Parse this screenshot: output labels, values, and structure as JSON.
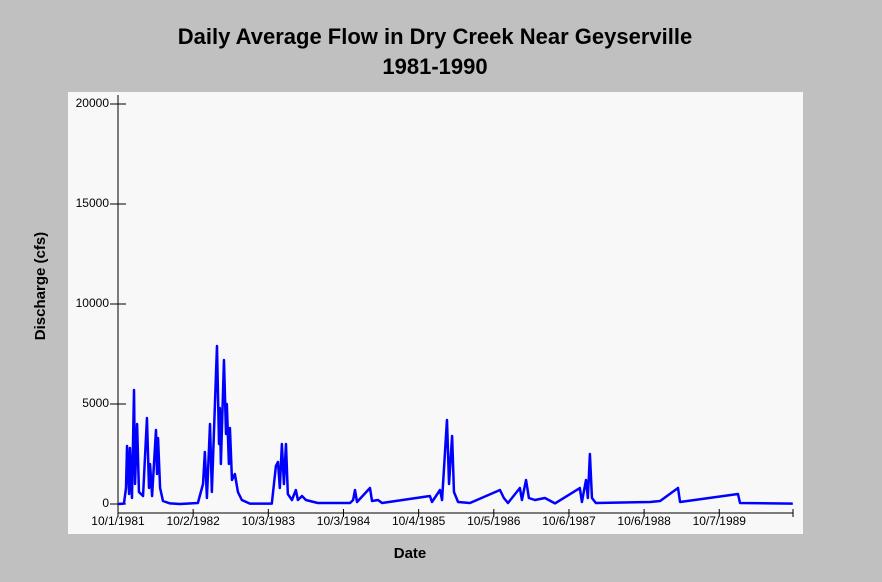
{
  "chart_data": {
    "type": "line",
    "title": "Daily Average Flow in Dry Creek Near Geyserville",
    "subtitle": "1981-1990",
    "x_label": "Date",
    "y_label": "Discharge (cfs)",
    "color": "#0000ff",
    "x": [
      "1981-10-01",
      "1981-10-30",
      "1981-11-09",
      "1981-11-14",
      "1981-11-24",
      "1981-11-28",
      "1981-12-08",
      "1981-12-18",
      "1981-12-23",
      "1982-01-02",
      "1982-01-11",
      "1982-01-31",
      "1982-02-19",
      "1982-03-01",
      "1982-03-06",
      "1982-03-16",
      "1982-04-04",
      "1982-04-09",
      "1982-04-14",
      "1982-04-24",
      "1982-05-08",
      "1982-06-11",
      "1982-07-30",
      "1982-10-25",
      "1982-11-19",
      "1982-11-28",
      "1982-12-08",
      "1982-12-23",
      "1983-01-01",
      "1983-01-26",
      "1983-02-05",
      "1983-02-09",
      "1983-02-14",
      "1983-03-01",
      "1983-03-11",
      "1983-03-15",
      "1983-03-25",
      "1983-03-30",
      "1983-04-09",
      "1983-04-23",
      "1983-05-08",
      "1983-05-27",
      "1983-07-05",
      "1983-10-20",
      "1983-11-09",
      "1983-11-19",
      "1983-11-28",
      "1983-12-08",
      "1983-12-18",
      "1983-12-28",
      "1984-01-06",
      "1984-01-26",
      "1984-02-14",
      "1984-02-24",
      "1984-03-15",
      "1984-04-03",
      "1984-05-31",
      "1984-11-04",
      "1984-11-19",
      "1984-11-28",
      "1984-12-08",
      "1985-02-09",
      "1985-02-19",
      "1985-03-20",
      "1985-04-09",
      "1985-11-28",
      "1985-12-08",
      "1986-01-16",
      "1986-01-26",
      "1986-02-19",
      "1986-03-01",
      "1986-03-16",
      "1986-03-25",
      "1986-04-14",
      "1986-06-11",
      "1986-11-04",
      "1986-11-23",
      "1986-12-13",
      "1987-02-09",
      "1987-02-19",
      "1987-03-11",
      "1987-03-25",
      "1987-04-23",
      "1987-06-11",
      "1987-07-30",
      "1987-11-28",
      "1987-12-08",
      "1987-12-28",
      "1988-01-06",
      "1988-01-16",
      "1988-01-26",
      "1988-02-14",
      "1988-11-04",
      "1988-12-23",
      "1989-03-20",
      "1989-03-30",
      "1990-01-06",
      "1990-01-16",
      "1990-09-30"
    ],
    "values": [
      0,
      20,
      800,
      2900,
      500,
      2800,
      300,
      5700,
      1000,
      4000,
      600,
      400,
      4300,
      800,
      2000,
      400,
      3700,
      1500,
      3300,
      800,
      150,
      30,
      0,
      50,
      1000,
      2600,
      300,
      4000,
      600,
      7900,
      3000,
      4800,
      2000,
      7200,
      3500,
      5000,
      2000,
      3800,
      1200,
      1500,
      600,
      200,
      20,
      20,
      1900,
      2100,
      800,
      3000,
      1000,
      3000,
      500,
      200,
      700,
      200,
      400,
      200,
      50,
      50,
      200,
      700,
      100,
      800,
      150,
      200,
      50,
      400,
      100,
      700,
      200,
      4200,
      1000,
      3400,
      600,
      100,
      50,
      700,
      300,
      50,
      800,
      200,
      1200,
      300,
      200,
      300,
      30,
      800,
      100,
      1200,
      300,
      2500,
      300,
      50,
      100,
      150,
      800,
      100,
      500,
      50,
      20
    ],
    "xlim": [
      "1981-10-01",
      "1990-10-01"
    ],
    "ylim": [
      -450,
      20450
    ],
    "xticks": [
      {
        "value": "1981-10-01",
        "label": "10/1/1981"
      },
      {
        "value": "1982-10-02",
        "label": "10/2/1982"
      },
      {
        "value": "1983-10-03",
        "label": "10/3/1983"
      },
      {
        "value": "1984-10-03",
        "label": "10/3/1984"
      },
      {
        "value": "1985-10-04",
        "label": "10/4/1985"
      },
      {
        "value": "1986-10-05",
        "label": "10/5/1986"
      },
      {
        "value": "1987-10-06",
        "label": "10/6/1987"
      },
      {
        "value": "1988-10-06",
        "label": "10/6/1988"
      },
      {
        "value": "1989-10-07",
        "label": "10/7/1989"
      }
    ],
    "yticks": [
      0,
      5000,
      10000,
      15000,
      20000
    ]
  }
}
